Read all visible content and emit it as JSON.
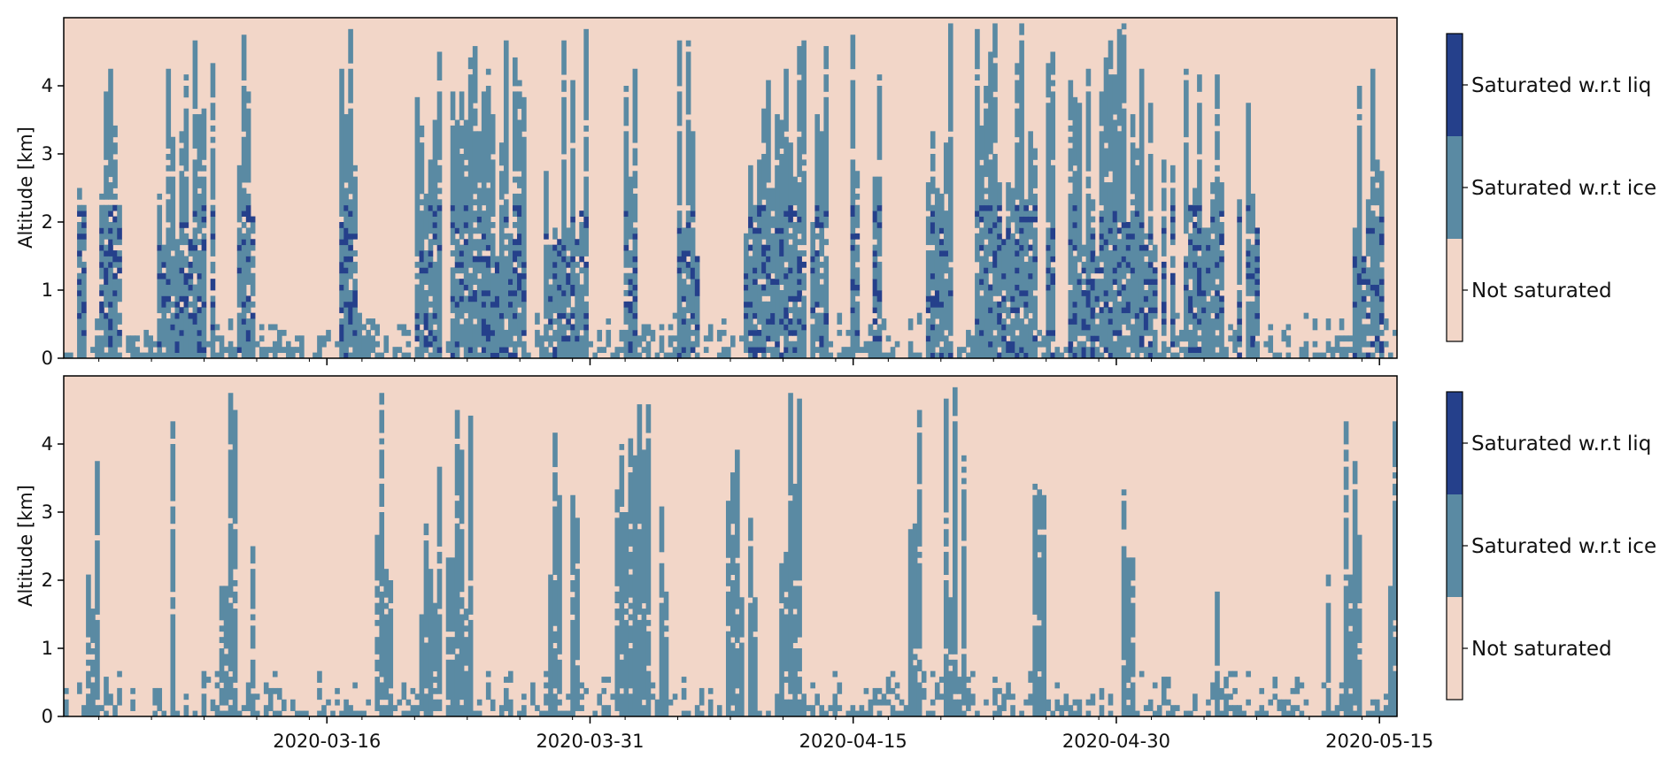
{
  "chart_data": [
    {
      "type": "heatmap",
      "panel": "top",
      "title": "",
      "xlabel": "",
      "ylabel": "Altitude [km]",
      "ylim": [
        0,
        5
      ],
      "y_ticks": [
        "0",
        "1",
        "2",
        "3",
        "4"
      ],
      "x_ticks": [],
      "xlim": [
        "2020-03-01",
        "2020-05-16"
      ],
      "grid": false,
      "has_liquid": true,
      "legend": {
        "placement": "right colorbar",
        "entries": [
          "Saturated w.r.t liq",
          "Saturated w.r.t ice",
          "Not saturated"
        ]
      }
    },
    {
      "type": "heatmap",
      "panel": "bottom",
      "title": "",
      "xlabel": "",
      "ylabel": "Altitude [km]",
      "ylim": [
        0,
        5
      ],
      "y_ticks": [
        "0",
        "1",
        "2",
        "3",
        "4"
      ],
      "x_ticks": [
        "2020-03-16",
        "2020-03-31",
        "2020-04-15",
        "2020-04-30",
        "2020-05-15"
      ],
      "xlim": [
        "2020-03-01",
        "2020-05-16"
      ],
      "grid": false,
      "has_liquid": false,
      "legend": {
        "placement": "right colorbar",
        "entries": [
          "Saturated w.r.t liq",
          "Saturated w.r.t ice",
          "Not saturated"
        ]
      }
    }
  ],
  "colors": {
    "not_saturated": "#f2d6c8",
    "saturated_ice": "#5a8aa3",
    "saturated_liq": "#25408b",
    "missing": "#ffffff"
  }
}
